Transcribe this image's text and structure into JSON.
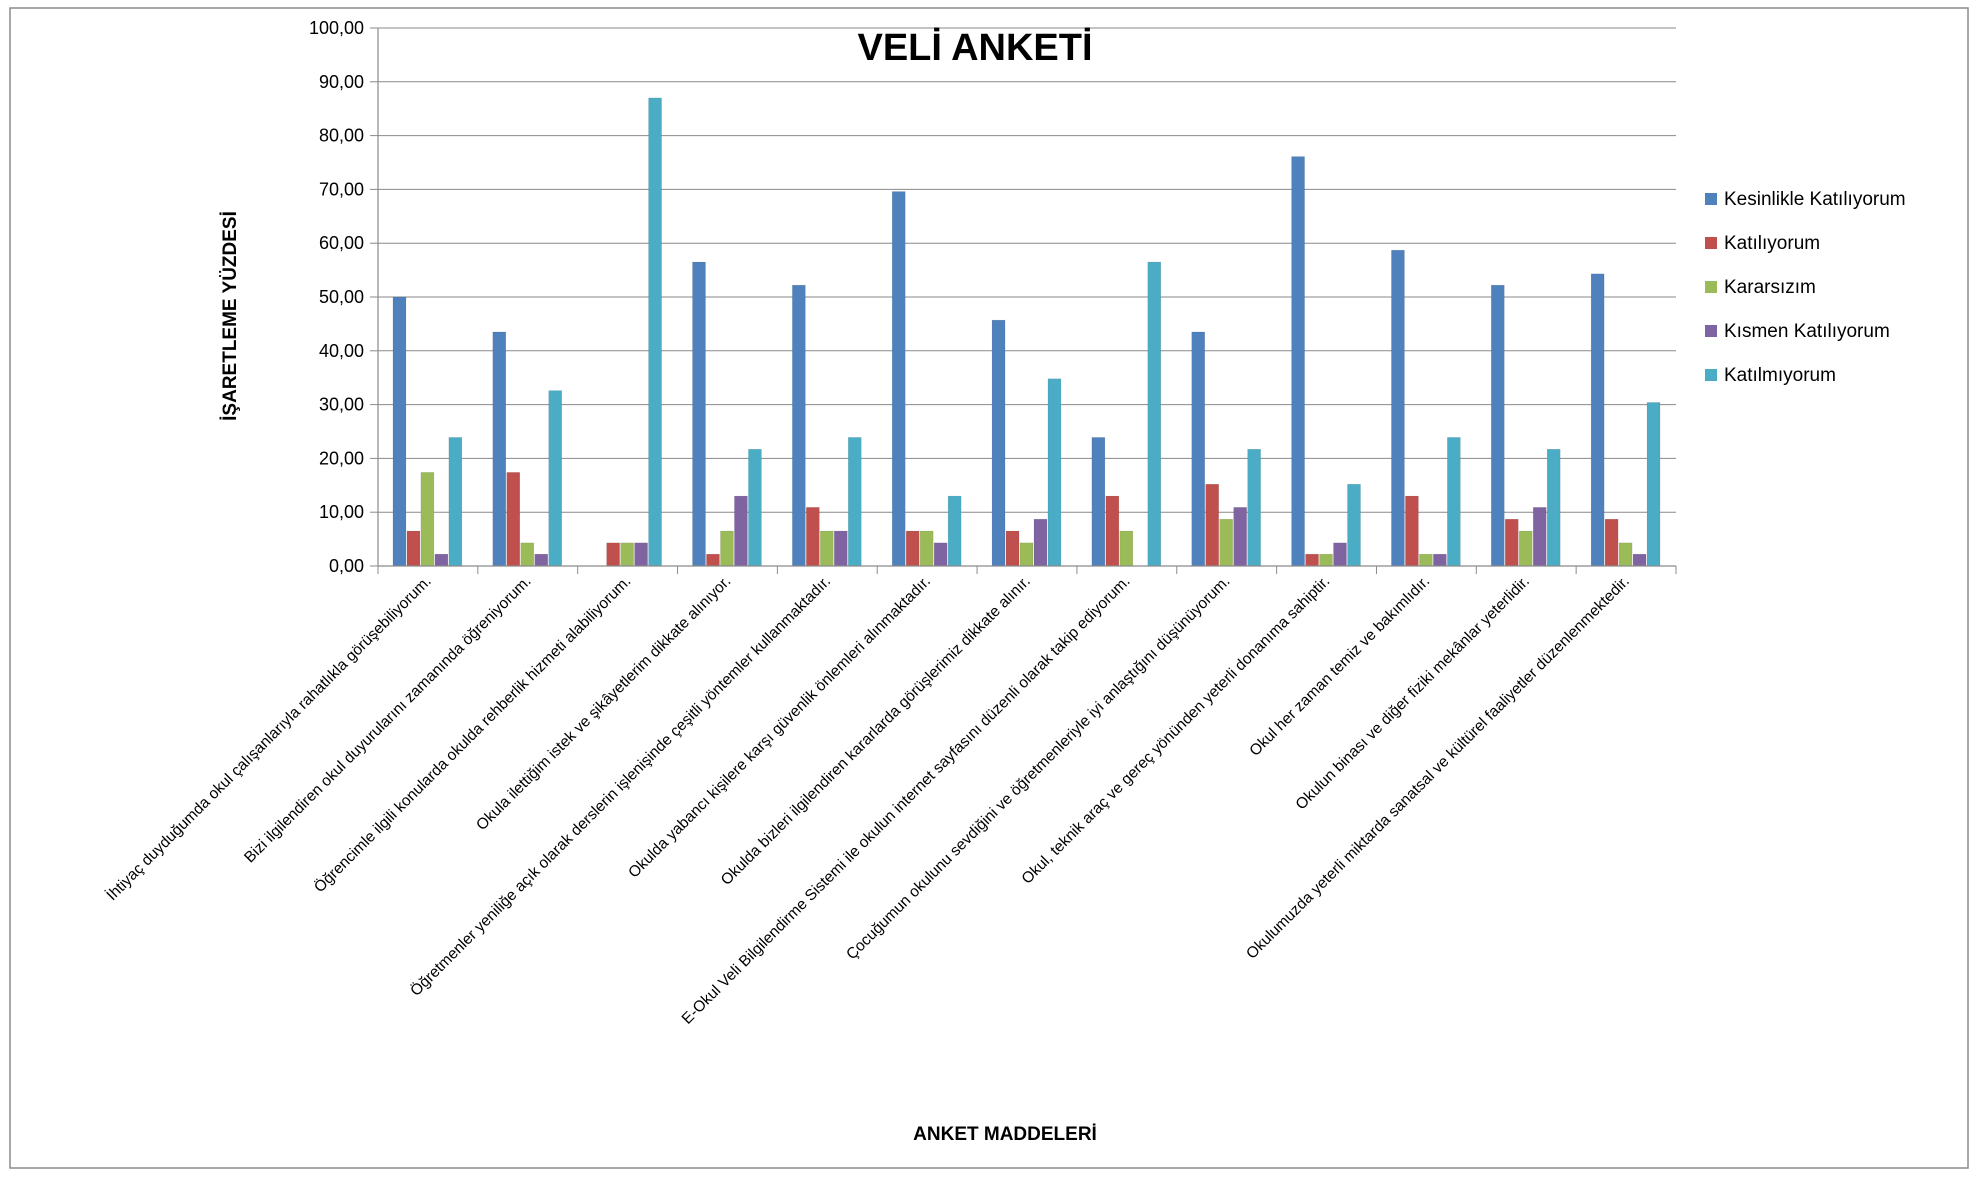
{
  "chart_data": {
    "type": "bar",
    "title": "VELİ ANKETİ",
    "xlabel": "ANKET MADDELERİ",
    "ylabel": "İŞARETLEME YÜZDESİ",
    "ylim": [
      0,
      100
    ],
    "yticks": [
      "0,00",
      "10,00",
      "20,00",
      "30,00",
      "40,00",
      "50,00",
      "60,00",
      "70,00",
      "80,00",
      "90,00",
      "100,00"
    ],
    "grid": true,
    "legend_position": "right",
    "categories": [
      "İhtiyaç duyduğumda okul çalışanlarıyla rahatlıkla görüşebiliyorum.",
      "Bizi ilgilendiren okul duyurularını zamanında öğreniyorum.",
      "Öğrencimle ilgili konularda okulda rehberlik hizmeti alabiliyorum.",
      "Okula ilettiğim istek ve şikâyetlerim dikkate alınıyor.",
      "Öğretmenler yeniliğe açık olarak derslerin işlenişinde çeşitli yöntemler kullanmaktadır.",
      "Okulda yabancı kişilere karşı güvenlik önlemleri alınmaktadır.",
      "Okulda bizleri ilgilendiren kararlarda görüşlerimiz dikkate alınır.",
      "E-Okul Veli Bilgilendirme Sistemi ile okulun internet sayfasını düzenli olarak takip ediyorum.",
      "Çocuğumun okulunu sevdiğini ve öğretmenleriyle iyi anlaştığını düşünüyorum.",
      "Okul, teknik araç ve gereç yönünden yeterli donanıma sahiptir.",
      "Okul her zaman temiz ve bakımlıdır.",
      "Okulun binası ve diğer fiziki mekânlar yeterlidir.",
      "Okulumuzda yeterli miktarda sanatsal ve kültürel faaliyetler düzenlenmektedir."
    ],
    "series": [
      {
        "name": "Kesinlikle Katılıyorum",
        "color": "#4F81BD",
        "values": [
          50.0,
          43.5,
          0.0,
          56.5,
          52.2,
          69.6,
          45.7,
          23.9,
          43.5,
          76.1,
          58.7,
          52.2,
          54.3
        ]
      },
      {
        "name": "Katılıyorum",
        "color": "#C0504D",
        "values": [
          6.5,
          17.4,
          4.3,
          2.2,
          10.9,
          6.5,
          6.5,
          13.0,
          15.2,
          2.2,
          13.0,
          8.7,
          8.7
        ]
      },
      {
        "name": "Kararsızım",
        "color": "#9BBB59",
        "values": [
          17.4,
          4.3,
          4.3,
          6.5,
          6.5,
          6.5,
          4.3,
          6.5,
          8.7,
          2.2,
          2.2,
          6.5,
          4.3
        ]
      },
      {
        "name": "Kısmen Katılıyorum",
        "color": "#8064A2",
        "values": [
          2.2,
          2.2,
          4.3,
          13.0,
          6.5,
          4.3,
          8.7,
          0.0,
          10.9,
          4.3,
          2.2,
          10.9,
          2.2
        ]
      },
      {
        "name": "Katılmıyorum",
        "color": "#4BACC6",
        "values": [
          23.9,
          32.6,
          87.0,
          21.7,
          23.9,
          13.0,
          34.8,
          56.5,
          21.7,
          15.2,
          23.9,
          21.7,
          30.4
        ]
      }
    ]
  }
}
